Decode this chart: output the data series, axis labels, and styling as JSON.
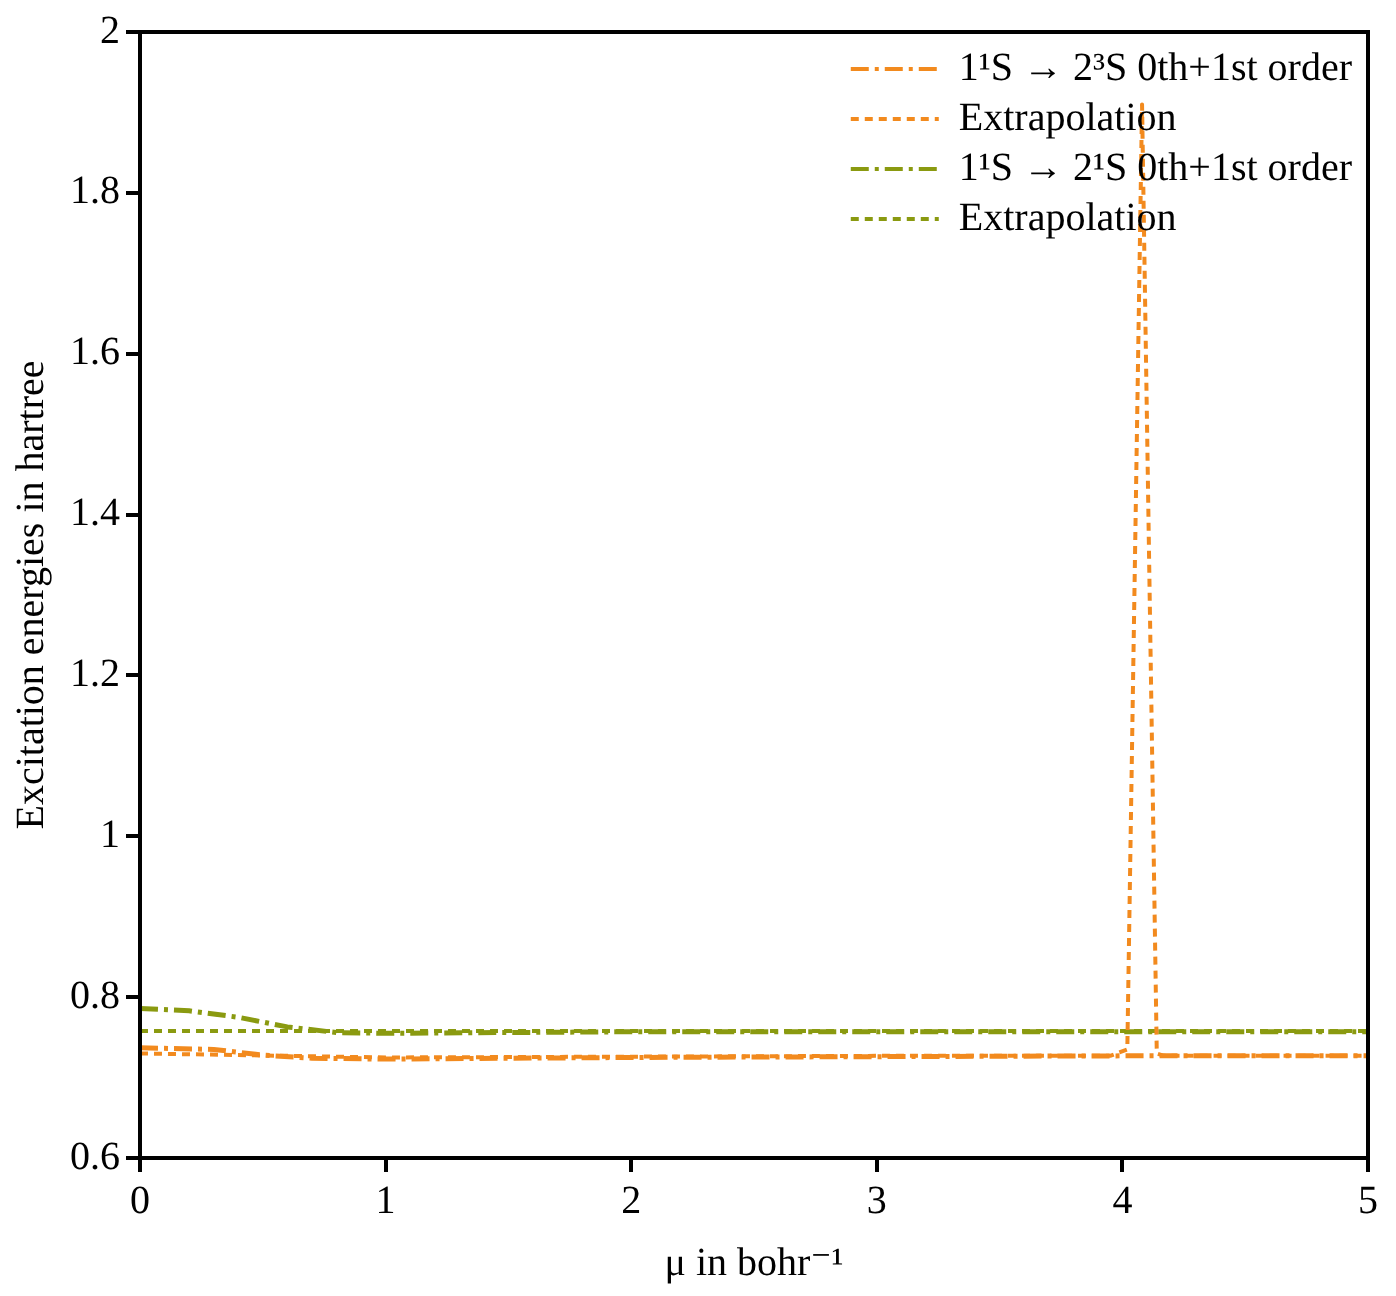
{
  "chart_data": {
    "type": "line",
    "xlabel": "μ in bohr⁻¹",
    "ylabel": "Excitation energies in hartree",
    "xlim": [
      0,
      5
    ],
    "xticks": [
      0,
      1,
      2,
      3,
      4,
      5
    ],
    "ylim": [
      0.6,
      2
    ],
    "yticks": [
      0.6,
      0.8,
      1,
      1.2,
      1.4,
      1.6,
      1.8,
      2
    ],
    "grid": false,
    "legend": "top right",
    "marker": "none",
    "series": [
      {
        "name": "1¹S → 2³S 0th+1st order",
        "color": "#f28a1e",
        "line_style": "dashed",
        "x": [
          0,
          0.3,
          0.5,
          0.7,
          1,
          1.5,
          2,
          3,
          4,
          5
        ],
        "values": [
          0.737,
          0.735,
          0.728,
          0.724,
          0.723,
          0.724,
          0.725,
          0.726,
          0.727,
          0.727
        ]
      },
      {
        "name": "Extrapolation",
        "color": "#f28a1e",
        "line_style": "dotted",
        "x": [
          0,
          1,
          2,
          3,
          3.95,
          4.02,
          4.08,
          4.14,
          4.17,
          5
        ],
        "values": [
          0.73,
          0.725,
          0.726,
          0.727,
          0.727,
          0.735,
          1.91,
          0.73,
          0.727,
          0.727
        ]
      },
      {
        "name": "1¹S → 2¹S 0th+1st order",
        "color": "#8a9a10",
        "line_style": "dashed",
        "x": [
          0,
          0.2,
          0.4,
          0.6,
          0.8,
          1,
          1.5,
          2,
          3,
          4,
          5
        ],
        "values": [
          0.786,
          0.783,
          0.775,
          0.763,
          0.756,
          0.755,
          0.756,
          0.757,
          0.757,
          0.757,
          0.757
        ]
      },
      {
        "name": "Extrapolation",
        "color": "#8a9a10",
        "line_style": "dotted",
        "x": [
          0,
          5
        ],
        "values": [
          0.758,
          0.758
        ]
      }
    ]
  }
}
